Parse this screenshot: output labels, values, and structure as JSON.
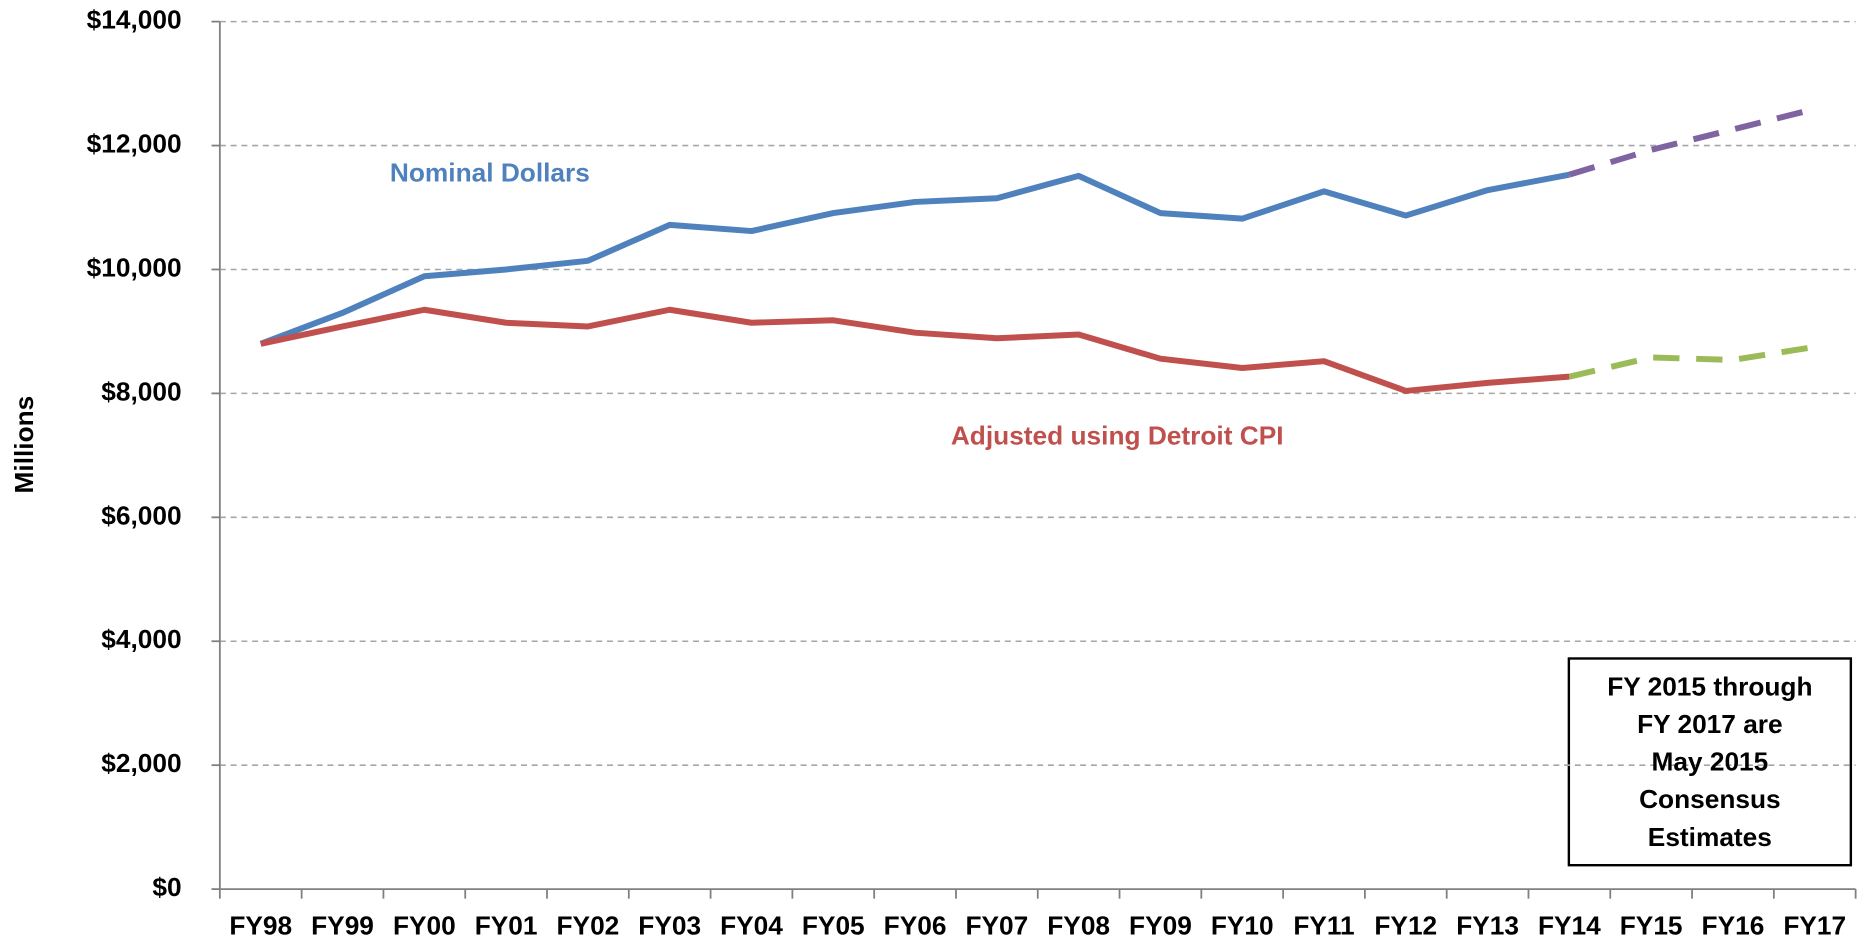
{
  "chart_data": {
    "type": "line",
    "y_axis_label": "Millions",
    "categories": [
      "FY98",
      "FY99",
      "FY00",
      "FY01",
      "FY02",
      "FY03",
      "FY04",
      "FY05",
      "FY06",
      "FY07",
      "FY08",
      "FY09",
      "FY10",
      "FY11",
      "FY12",
      "FY13",
      "FY14",
      "FY15",
      "FY16",
      "FY17"
    ],
    "dashed_from": "FY14",
    "series": [
      {
        "name": "Nominal Dollars",
        "color": "#4f81bd",
        "projection_color": "#8064a2",
        "values": [
          8800,
          9300,
          9890,
          10000,
          10140,
          10720,
          10620,
          10910,
          11090,
          11150,
          11510,
          10910,
          10820,
          11260,
          10870,
          11280,
          11530,
          11930,
          12260,
          12590
        ]
      },
      {
        "name": "Adjusted using Detroit CPI",
        "color": "#c0504d",
        "projection_color": "#9bbb59",
        "values": [
          8800,
          9080,
          9350,
          9140,
          9080,
          9350,
          9140,
          9180,
          8980,
          8890,
          8950,
          8560,
          8410,
          8520,
          8040,
          8170,
          8270,
          8580,
          8540,
          8750
        ]
      }
    ],
    "ylim": [
      0,
      14000
    ],
    "yticks": [
      {
        "value": 0,
        "label": "$0"
      },
      {
        "value": 2000,
        "label": "$2,000"
      },
      {
        "value": 4000,
        "label": "$4,000"
      },
      {
        "value": 6000,
        "label": "$6,000"
      },
      {
        "value": 8000,
        "label": "$8,000"
      },
      {
        "value": 10000,
        "label": "$10,000"
      },
      {
        "value": 12000,
        "label": "$12,000"
      },
      {
        "value": 14000,
        "label": "$14,000"
      }
    ],
    "grid": true,
    "note": [
      "FY 2015 through",
      "FY 2017 are",
      "May 2015",
      "Consensus",
      "Estimates"
    ]
  }
}
